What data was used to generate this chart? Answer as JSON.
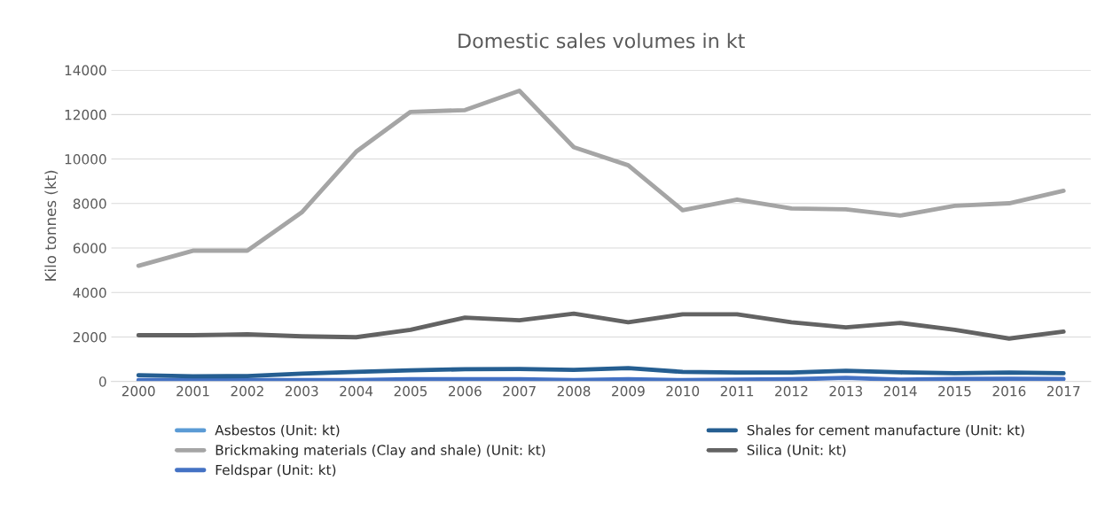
{
  "chart_data": {
    "type": "line",
    "title": "Domestic sales volumes in kt",
    "ylabel": "Kilo tonnes (kt)",
    "categories": [
      "2000",
      "2001",
      "2002",
      "2003",
      "2004",
      "2005",
      "2006",
      "2007",
      "2008",
      "2009",
      "2010",
      "2011",
      "2012",
      "2013",
      "2014",
      "2015",
      "2016",
      "2017"
    ],
    "series": [
      {
        "name": "Asbestos (Unit: kt)",
        "color": "#5b9bd5",
        "values": [
          null,
          null,
          null,
          null,
          null,
          null,
          null,
          null,
          null,
          null,
          null,
          null,
          null,
          null,
          null,
          null,
          null,
          null
        ]
      },
      {
        "name": "Brickmaking materials (Clay and shale) (Unit: kt)",
        "color": "#a5a5a5",
        "values": [
          5200,
          5880,
          5880,
          7600,
          10330,
          12120,
          12200,
          13070,
          10530,
          9720,
          7700,
          8180,
          7780,
          7740,
          7460,
          7900,
          8010,
          8570
        ]
      },
      {
        "name": "Feldspar (Unit: kt)",
        "color": "#4472c4",
        "values": [
          60,
          60,
          60,
          60,
          60,
          100,
          100,
          100,
          60,
          100,
          60,
          80,
          100,
          160,
          80,
          110,
          120,
          110
        ]
      },
      {
        "name": "Shales for cement manufacture (Unit: kt)",
        "color": "#255e91",
        "values": [
          280,
          230,
          240,
          350,
          430,
          500,
          550,
          560,
          520,
          600,
          430,
          400,
          400,
          480,
          410,
          370,
          400,
          370
        ]
      },
      {
        "name": "Silica (Unit: kt)",
        "color": "#636363",
        "values": [
          2080,
          2080,
          2120,
          2030,
          1990,
          2320,
          2870,
          2750,
          3050,
          2660,
          3020,
          3020,
          2660,
          2430,
          2630,
          2320,
          1930,
          2240
        ]
      }
    ],
    "ylim": [
      0,
      14000
    ],
    "yticks": [
      0,
      2000,
      4000,
      6000,
      8000,
      10000,
      12000,
      14000
    ],
    "grid": "y",
    "legend": "bottom",
    "marker": "none",
    "line_style": "solid"
  }
}
